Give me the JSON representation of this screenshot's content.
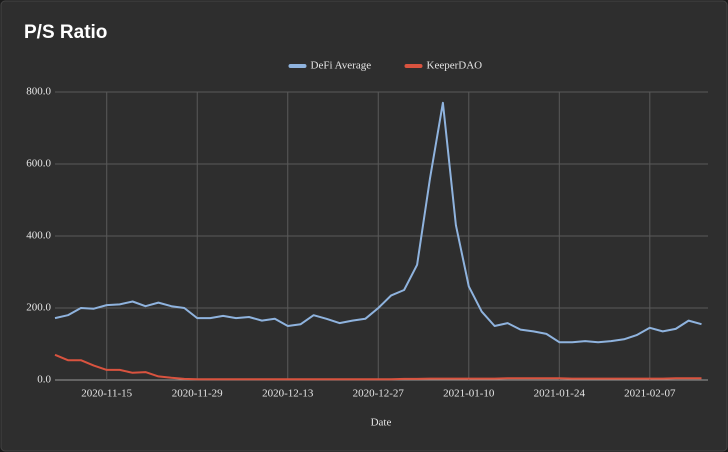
{
  "chart_data": {
    "type": "line",
    "title": "P/S Ratio",
    "x_label": "Date",
    "x": [
      "2020-11-07",
      "2020-11-09",
      "2020-11-11",
      "2020-11-13",
      "2020-11-15",
      "2020-11-17",
      "2020-11-19",
      "2020-11-21",
      "2020-11-23",
      "2020-11-25",
      "2020-11-27",
      "2020-11-29",
      "2020-12-01",
      "2020-12-03",
      "2020-12-05",
      "2020-12-07",
      "2020-12-09",
      "2020-12-11",
      "2020-12-13",
      "2020-12-15",
      "2020-12-17",
      "2020-12-19",
      "2020-12-21",
      "2020-12-23",
      "2020-12-25",
      "2020-12-27",
      "2020-12-29",
      "2020-12-31",
      "2021-01-02",
      "2021-01-04",
      "2021-01-06",
      "2021-01-08",
      "2021-01-10",
      "2021-01-12",
      "2021-01-14",
      "2021-01-16",
      "2021-01-18",
      "2021-01-20",
      "2021-01-22",
      "2021-01-24",
      "2021-01-26",
      "2021-01-28",
      "2021-01-30",
      "2021-02-01",
      "2021-02-03",
      "2021-02-05",
      "2021-02-07",
      "2021-02-09",
      "2021-02-11",
      "2021-02-13",
      "2021-02-15"
    ],
    "series": [
      {
        "name": "DeFi Average",
        "color": "#8fb3de",
        "values": [
          172,
          180,
          200,
          198,
          208,
          210,
          218,
          205,
          215,
          205,
          200,
          172,
          172,
          178,
          172,
          175,
          165,
          170,
          150,
          155,
          180,
          170,
          158,
          165,
          170,
          200,
          235,
          250,
          320,
          560,
          770,
          430,
          260,
          190,
          150,
          158,
          140,
          135,
          128,
          105,
          105,
          108,
          105,
          108,
          113,
          125,
          145,
          135,
          142,
          165,
          155
        ]
      },
      {
        "name": "KeeperDAO",
        "color": "#d9533f",
        "values": [
          70,
          55,
          55,
          40,
          28,
          28,
          20,
          22,
          10,
          6,
          3,
          2,
          2,
          2,
          2,
          2,
          2,
          2,
          2,
          2,
          2,
          2,
          2,
          2,
          2,
          2,
          2,
          3,
          3,
          4,
          4,
          4,
          4,
          4,
          4,
          5,
          5,
          5,
          5,
          5,
          4,
          4,
          4,
          4,
          4,
          4,
          4,
          4,
          5,
          5,
          5
        ]
      }
    ],
    "xlim": [
      "2020-11-07",
      "2021-02-16"
    ],
    "xticks": [
      "2020-11-15",
      "2020-11-29",
      "2020-12-13",
      "2020-12-27",
      "2021-01-10",
      "2021-01-24",
      "2021-02-07"
    ],
    "ylim": [
      0,
      800
    ],
    "yticks": [
      {
        "value": 0,
        "label": "0.0"
      },
      {
        "value": 200,
        "label": "200.0"
      },
      {
        "value": 400,
        "label": "400.0"
      },
      {
        "value": 600,
        "label": "600.0"
      },
      {
        "value": 800,
        "label": "800.0"
      }
    ],
    "grid": true,
    "legend": "top"
  }
}
